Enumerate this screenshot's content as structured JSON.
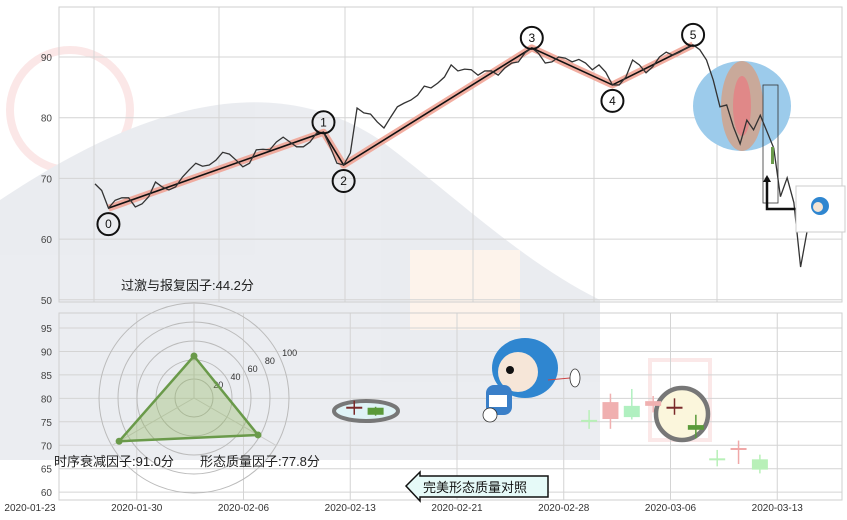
{
  "chart_data": [
    {
      "type": "line",
      "panel": "price",
      "yticks": [
        50,
        60,
        70,
        80,
        90
      ],
      "ylim": [
        50,
        98
      ],
      "grid": true,
      "series": [
        {
          "color": "#333333",
          "values": [
            69.1,
            68,
            65.1,
            66.4,
            66.8,
            66.8,
            65.3,
            65.8,
            67,
            69.4,
            68.6,
            68.1,
            68.6,
            70.2,
            71.4,
            72.5,
            72,
            72.2,
            73,
            74.3,
            74,
            73,
            71.9,
            72.5,
            74.7,
            74.8,
            74.7,
            76,
            76.8,
            76,
            75.2,
            75.2,
            76,
            77.5,
            77.6,
            75.2,
            72.5,
            72.2,
            74.2,
            81.6,
            80.8,
            80.6,
            79.3,
            78.3,
            80.1,
            81.8,
            82.4,
            82.9,
            83.7,
            85.2,
            84.9,
            85.7,
            86.7,
            88.7,
            87.7,
            88,
            87.9,
            87,
            87.7,
            87.7,
            87,
            88.2,
            89,
            89.2,
            90.7,
            91.5,
            90.6,
            89,
            89.2,
            90,
            89.8,
            89.2,
            89.6,
            89,
            87.9,
            88.7,
            87.5,
            85.4,
            85.4,
            86.7,
            89.5,
            88.7,
            87.4,
            88.4,
            90,
            90.8,
            90.3,
            90.8,
            91.5,
            92,
            91.2,
            89.5,
            86.2,
            81.8,
            82.1,
            78.5,
            75.7,
            79.6,
            78,
            80.4,
            77.7,
            75,
            67,
            70.1,
            66,
            55.4,
            61.5
          ]
        }
      ],
      "wave_points": [
        {
          "label": "0",
          "index": 2,
          "value": 65.1,
          "position": "below"
        },
        {
          "label": "1",
          "index": 34,
          "value": 77.6,
          "position": "above"
        },
        {
          "label": "2",
          "index": 37,
          "value": 72.2,
          "position": "below"
        },
        {
          "label": "3",
          "index": 65,
          "value": 91.5,
          "position": "above"
        },
        {
          "label": "4",
          "index": 77,
          "value": 85.4,
          "position": "below"
        },
        {
          "label": "5",
          "index": 89,
          "value": 92.0,
          "position": "above"
        }
      ],
      "wave_color": "#f0a090",
      "highlight_colors": {
        "outer": "#9ccbeb",
        "middle": "#c9a99a",
        "inner": "#e08888"
      }
    },
    {
      "type": "candlestick",
      "panel": "pattern",
      "yticks": [
        60,
        65,
        70,
        75,
        80,
        85,
        90,
        95
      ],
      "ylim": [
        59,
        98
      ],
      "grid": true,
      "xticks": [
        "2020-01-23",
        "2020-01-30",
        "2020-02-06",
        "2020-02-13",
        "2020-02-21",
        "2020-02-28",
        "2020-03-06",
        "2020-03-13"
      ],
      "candles": [
        {
          "slot": 15,
          "open": 78.0,
          "close": 78.0,
          "high": 79.5,
          "low": 76.5,
          "color": "#7a2a2a"
        },
        {
          "slot": 16,
          "open": 78.0,
          "close": 76.5,
          "high": 78.2,
          "low": 76.3,
          "color": "#5a9a3a"
        },
        {
          "slot": 26,
          "open": 75.2,
          "close": 75.2,
          "high": 77.5,
          "low": 73.5,
          "color": "#b8f0b8"
        },
        {
          "slot": 27,
          "open": 75.6,
          "close": 79.2,
          "high": 81,
          "low": 73.5,
          "color": "#f0b0b0"
        },
        {
          "slot": 28,
          "open": 78.4,
          "close": 76,
          "high": 82,
          "low": 75.5,
          "color": "#b0f0c0"
        },
        {
          "slot": 29,
          "open": 78.4,
          "close": 79.4,
          "high": 80.5,
          "low": 77,
          "color": "#f0b0b0"
        },
        {
          "slot": 30,
          "open": 78.0,
          "close": 78.0,
          "high": 80,
          "low": 76.5,
          "color": "#7a2a2a"
        },
        {
          "slot": 31,
          "open": 74.3,
          "close": 73.3,
          "high": 76.5,
          "low": 71.5,
          "color": "#5a9a3a"
        },
        {
          "slot": 32,
          "open": 67,
          "close": 67,
          "high": 69,
          "low": 65.5,
          "color": "#b8f0b8"
        },
        {
          "slot": 33,
          "open": 69.2,
          "close": 69.2,
          "high": 71,
          "low": 66,
          "color": "#f0a8a8"
        },
        {
          "slot": 34,
          "open": 67,
          "close": 64.8,
          "high": 68,
          "low": 64,
          "color": "#b8f0b8"
        }
      ]
    },
    {
      "type": "radar",
      "rticks": [
        20,
        40,
        60,
        80,
        100
      ],
      "color": "#6a9a4a",
      "factors": [
        {
          "name": "过激与报复因子",
          "value": 44.2,
          "label": "过激与报复因子:44.2分"
        },
        {
          "name": "时序衰减因子",
          "value": 91.0,
          "label": "时序衰减因子:91.0分"
        },
        {
          "name": "形态质量因子",
          "value": 77.8,
          "label": "形态质量因子:77.8分"
        }
      ]
    }
  ],
  "annotation": {
    "label": "完美形态质量对照",
    "icon": "arrow-left-icon"
  }
}
